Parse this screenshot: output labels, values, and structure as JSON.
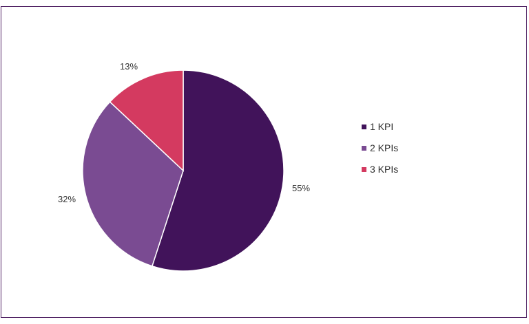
{
  "chart_data": {
    "type": "pie",
    "title": "",
    "categories": [
      "1 KPI",
      "2 KPIs",
      "3 KPIs"
    ],
    "values": [
      55,
      32,
      13
    ],
    "labels": [
      "55%",
      "32%",
      "13%"
    ],
    "colors": [
      "#41135a",
      "#7a4b92",
      "#d43a60"
    ],
    "legend_position": "right",
    "start_angle": "top",
    "direction": "clockwise"
  }
}
